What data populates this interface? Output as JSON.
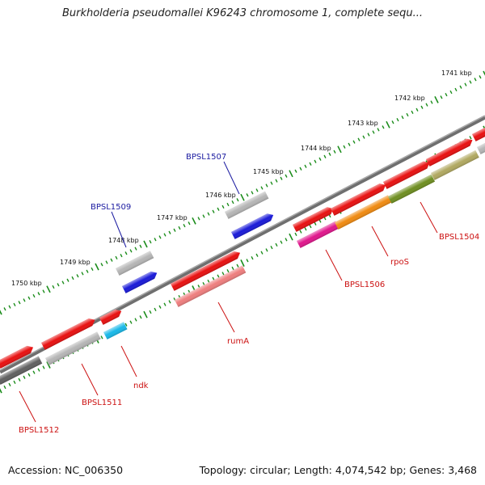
{
  "title": "Burkholderia pseudomallei K96243 chromosome 1, complete sequ...",
  "footer": {
    "accession": "Accession: NC_006350",
    "summary": "Topology: circular; Length: 4,074,542 bp; Genes: 3,468"
  },
  "colors": {
    "backbone": "#777777",
    "tick": "#1a8c1a",
    "label_blue": "#1a1aa0",
    "label_red": "#cc1111"
  },
  "scale_labels": [
    "1741 kbp",
    "1742 kbp",
    "1743 kbp",
    "1744 kbp",
    "1745 kbp",
    "1746 kbp",
    "1747 kbp",
    "1748 kbp",
    "1749 kbp",
    "1750 kbp"
  ],
  "genes": [
    {
      "name": "BPSL1507",
      "color": "#1a1aa0"
    },
    {
      "name": "BPSL1509",
      "color": "#1a1aa0"
    },
    {
      "name": "BPSL1504",
      "color": "#cc1111"
    },
    {
      "name": "rpoS",
      "color": "#cc1111"
    },
    {
      "name": "BPSL1506",
      "color": "#cc1111"
    },
    {
      "name": "rumA",
      "color": "#cc1111"
    },
    {
      "name": "ndk",
      "color": "#cc1111"
    },
    {
      "name": "BPSL1511",
      "color": "#cc1111"
    },
    {
      "name": "BPSL1512",
      "color": "#cc1111"
    }
  ]
}
